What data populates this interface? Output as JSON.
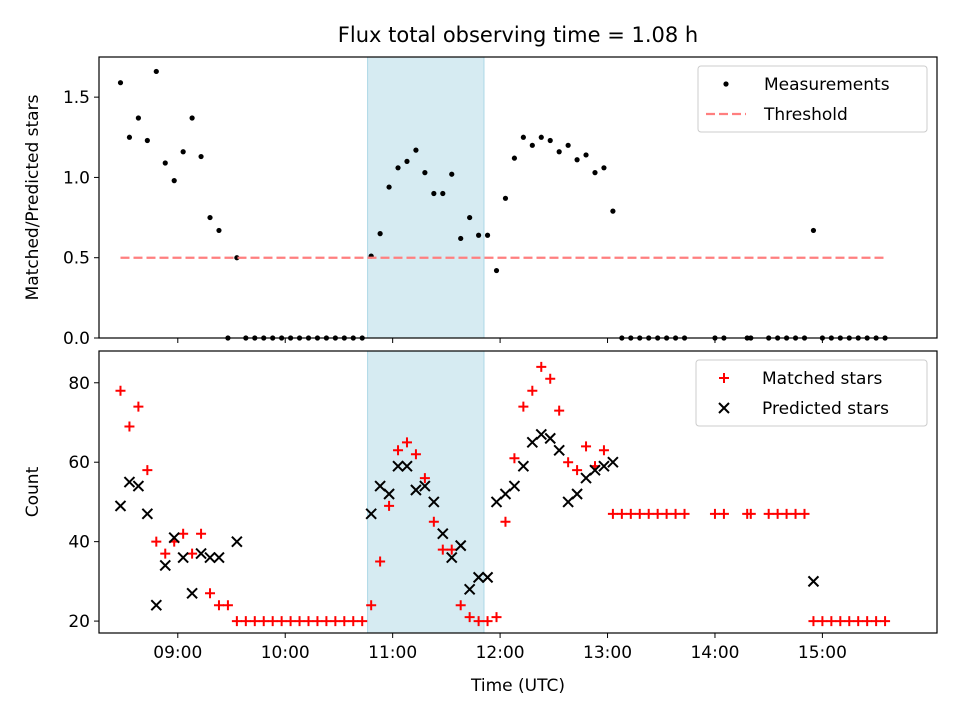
{
  "chart_data": [
    {
      "type": "scatter",
      "title": "Flux total observing time = 1.08 h",
      "xlabel": "",
      "ylabel": "Matched/Predicted stars",
      "xlim": [
        "08:16",
        "16:04"
      ],
      "ylim": [
        0,
        1.75
      ],
      "yticks": [
        0.0,
        0.5,
        1.0,
        1.5
      ],
      "ytick_labels": [
        "0.0",
        "0.5",
        "1.0",
        "1.5"
      ],
      "shaded_region": {
        "x": [
          "10:46",
          "11:51"
        ],
        "color": "#add8e6"
      },
      "legend": {
        "placement": "top-right",
        "entries": [
          "Measurements",
          "Threshold"
        ]
      },
      "series": [
        {
          "name": "Measurements",
          "marker": "dot",
          "color": "#000000",
          "points": [
            [
              "08:28",
              1.59
            ],
            [
              "08:33",
              1.25
            ],
            [
              "08:38",
              1.37
            ],
            [
              "08:43",
              1.23
            ],
            [
              "08:48",
              1.66
            ],
            [
              "08:53",
              1.09
            ],
            [
              "08:58",
              0.98
            ],
            [
              "09:03",
              1.16
            ],
            [
              "09:08",
              1.37
            ],
            [
              "09:13",
              1.13
            ],
            [
              "09:18",
              0.75
            ],
            [
              "09:23",
              0.67
            ],
            [
              "09:28",
              0.0
            ],
            [
              "09:33",
              0.5
            ],
            [
              "09:38",
              0.0
            ],
            [
              "09:43",
              0.0
            ],
            [
              "09:48",
              0.0
            ],
            [
              "09:53",
              0.0
            ],
            [
              "09:58",
              0.0
            ],
            [
              "10:03",
              0.0
            ],
            [
              "10:08",
              0.0
            ],
            [
              "10:13",
              0.0
            ],
            [
              "10:18",
              0.0
            ],
            [
              "10:23",
              0.0
            ],
            [
              "10:28",
              0.0
            ],
            [
              "10:33",
              0.0
            ],
            [
              "10:38",
              0.0
            ],
            [
              "10:43",
              0.0
            ],
            [
              "10:48",
              0.51
            ],
            [
              "10:53",
              0.65
            ],
            [
              "10:58",
              0.94
            ],
            [
              "11:03",
              1.06
            ],
            [
              "11:08",
              1.1
            ],
            [
              "11:13",
              1.17
            ],
            [
              "11:18",
              1.03
            ],
            [
              "11:23",
              0.9
            ],
            [
              "11:28",
              0.9
            ],
            [
              "11:33",
              1.02
            ],
            [
              "11:38",
              0.62
            ],
            [
              "11:43",
              0.75
            ],
            [
              "11:48",
              0.64
            ],
            [
              "11:53",
              0.64
            ],
            [
              "11:58",
              0.42
            ],
            [
              "12:03",
              0.87
            ],
            [
              "12:08",
              1.12
            ],
            [
              "12:13",
              1.25
            ],
            [
              "12:18",
              1.2
            ],
            [
              "12:23",
              1.25
            ],
            [
              "12:28",
              1.23
            ],
            [
              "12:33",
              1.16
            ],
            [
              "12:38",
              1.2
            ],
            [
              "12:43",
              1.11
            ],
            [
              "12:48",
              1.14
            ],
            [
              "12:53",
              1.03
            ],
            [
              "12:58",
              1.06
            ],
            [
              "13:03",
              0.79
            ],
            [
              "13:08",
              0.0
            ],
            [
              "13:13",
              0.0
            ],
            [
              "13:18",
              0.0
            ],
            [
              "13:23",
              0.0
            ],
            [
              "13:28",
              0.0
            ],
            [
              "13:33",
              0.0
            ],
            [
              "13:38",
              0.0
            ],
            [
              "13:43",
              0.0
            ],
            [
              "14:00",
              0.0
            ],
            [
              "14:05",
              0.0
            ],
            [
              "14:18",
              0.0
            ],
            [
              "14:20",
              0.0
            ],
            [
              "14:30",
              0.0
            ],
            [
              "14:35",
              0.0
            ],
            [
              "14:40",
              0.0
            ],
            [
              "14:45",
              0.0
            ],
            [
              "14:50",
              0.0
            ],
            [
              "14:55",
              0.67
            ],
            [
              "15:00",
              0.0
            ],
            [
              "15:05",
              0.0
            ],
            [
              "15:10",
              0.0
            ],
            [
              "15:15",
              0.0
            ],
            [
              "15:20",
              0.0
            ],
            [
              "15:25",
              0.0
            ],
            [
              "15:30",
              0.0
            ],
            [
              "15:35",
              0.0
            ]
          ]
        },
        {
          "name": "Threshold",
          "marker": "dashed-line",
          "color": "#ff7f7f",
          "points": [
            [
              "08:28",
              0.5
            ],
            [
              "15:35",
              0.5
            ]
          ]
        }
      ]
    },
    {
      "type": "scatter",
      "title": "",
      "xlabel": "Time (UTC)",
      "ylabel": "Count",
      "xlim": [
        "08:16",
        "16:04"
      ],
      "ylim": [
        17,
        88
      ],
      "yticks": [
        20,
        40,
        60,
        80
      ],
      "ytick_labels": [
        "20",
        "40",
        "60",
        "80"
      ],
      "xticks": [
        "09:00",
        "10:00",
        "11:00",
        "12:00",
        "13:00",
        "14:00",
        "15:00"
      ],
      "xtick_labels": [
        "09:00",
        "10:00",
        "11:00",
        "12:00",
        "13:00",
        "14:00",
        "15:00"
      ],
      "shaded_region": {
        "x": [
          "10:46",
          "11:51"
        ],
        "color": "#add8e6"
      },
      "legend": {
        "placement": "top-right",
        "entries": [
          "Matched stars",
          "Predicted stars"
        ]
      },
      "series": [
        {
          "name": "Matched stars",
          "marker": "plus",
          "color": "#ff0000",
          "points": [
            [
              "08:28",
              78
            ],
            [
              "08:33",
              69
            ],
            [
              "08:38",
              74
            ],
            [
              "08:43",
              58
            ],
            [
              "08:48",
              40
            ],
            [
              "08:53",
              37
            ],
            [
              "08:58",
              40
            ],
            [
              "09:03",
              42
            ],
            [
              "09:08",
              37
            ],
            [
              "09:13",
              42
            ],
            [
              "09:18",
              27
            ],
            [
              "09:23",
              24
            ],
            [
              "09:28",
              24
            ],
            [
              "09:33",
              20
            ],
            [
              "09:38",
              20
            ],
            [
              "09:43",
              20
            ],
            [
              "09:48",
              20
            ],
            [
              "09:53",
              20
            ],
            [
              "09:58",
              20
            ],
            [
              "10:03",
              20
            ],
            [
              "10:08",
              20
            ],
            [
              "10:13",
              20
            ],
            [
              "10:18",
              20
            ],
            [
              "10:23",
              20
            ],
            [
              "10:28",
              20
            ],
            [
              "10:33",
              20
            ],
            [
              "10:38",
              20
            ],
            [
              "10:43",
              20
            ],
            [
              "10:48",
              24
            ],
            [
              "10:53",
              35
            ],
            [
              "10:58",
              49
            ],
            [
              "11:03",
              63
            ],
            [
              "11:08",
              65
            ],
            [
              "11:13",
              62
            ],
            [
              "11:18",
              56
            ],
            [
              "11:23",
              45
            ],
            [
              "11:28",
              38
            ],
            [
              "11:33",
              38
            ],
            [
              "11:38",
              24
            ],
            [
              "11:43",
              21
            ],
            [
              "11:48",
              20
            ],
            [
              "11:53",
              20
            ],
            [
              "11:58",
              21
            ],
            [
              "12:03",
              45
            ],
            [
              "12:08",
              61
            ],
            [
              "12:13",
              74
            ],
            [
              "12:18",
              78
            ],
            [
              "12:23",
              84
            ],
            [
              "12:28",
              81
            ],
            [
              "12:33",
              73
            ],
            [
              "12:38",
              60
            ],
            [
              "12:43",
              58
            ],
            [
              "12:48",
              64
            ],
            [
              "12:53",
              59
            ],
            [
              "12:58",
              63
            ],
            [
              "13:03",
              47
            ],
            [
              "13:08",
              47
            ],
            [
              "13:13",
              47
            ],
            [
              "13:18",
              47
            ],
            [
              "13:23",
              47
            ],
            [
              "13:28",
              47
            ],
            [
              "13:33",
              47
            ],
            [
              "13:38",
              47
            ],
            [
              "13:43",
              47
            ],
            [
              "14:00",
              47
            ],
            [
              "14:05",
              47
            ],
            [
              "14:18",
              47
            ],
            [
              "14:20",
              47
            ],
            [
              "14:30",
              47
            ],
            [
              "14:35",
              47
            ],
            [
              "14:40",
              47
            ],
            [
              "14:45",
              47
            ],
            [
              "14:50",
              47
            ],
            [
              "14:55",
              20
            ],
            [
              "15:00",
              20
            ],
            [
              "15:05",
              20
            ],
            [
              "15:10",
              20
            ],
            [
              "15:15",
              20
            ],
            [
              "15:20",
              20
            ],
            [
              "15:25",
              20
            ],
            [
              "15:30",
              20
            ],
            [
              "15:35",
              20
            ]
          ]
        },
        {
          "name": "Predicted stars",
          "marker": "x",
          "color": "#000000",
          "points": [
            [
              "08:28",
              49
            ],
            [
              "08:33",
              55
            ],
            [
              "08:38",
              54
            ],
            [
              "08:43",
              47
            ],
            [
              "08:48",
              24
            ],
            [
              "08:53",
              34
            ],
            [
              "08:58",
              41
            ],
            [
              "09:03",
              36
            ],
            [
              "09:08",
              27
            ],
            [
              "09:13",
              37
            ],
            [
              "09:18",
              36
            ],
            [
              "09:23",
              36
            ],
            [
              "09:33",
              40
            ],
            [
              "10:48",
              47
            ],
            [
              "10:53",
              54
            ],
            [
              "10:58",
              52
            ],
            [
              "11:03",
              59
            ],
            [
              "11:08",
              59
            ],
            [
              "11:13",
              53
            ],
            [
              "11:18",
              54
            ],
            [
              "11:23",
              50
            ],
            [
              "11:28",
              42
            ],
            [
              "11:33",
              36
            ],
            [
              "11:38",
              39
            ],
            [
              "11:43",
              28
            ],
            [
              "11:48",
              31
            ],
            [
              "11:53",
              31
            ],
            [
              "11:58",
              50
            ],
            [
              "12:03",
              52
            ],
            [
              "12:08",
              54
            ],
            [
              "12:13",
              59
            ],
            [
              "12:18",
              65
            ],
            [
              "12:23",
              67
            ],
            [
              "12:28",
              66
            ],
            [
              "12:33",
              63
            ],
            [
              "12:38",
              50
            ],
            [
              "12:43",
              52
            ],
            [
              "12:48",
              56
            ],
            [
              "12:53",
              58
            ],
            [
              "12:58",
              59
            ],
            [
              "13:03",
              60
            ],
            [
              "14:55",
              30
            ]
          ]
        }
      ]
    }
  ]
}
